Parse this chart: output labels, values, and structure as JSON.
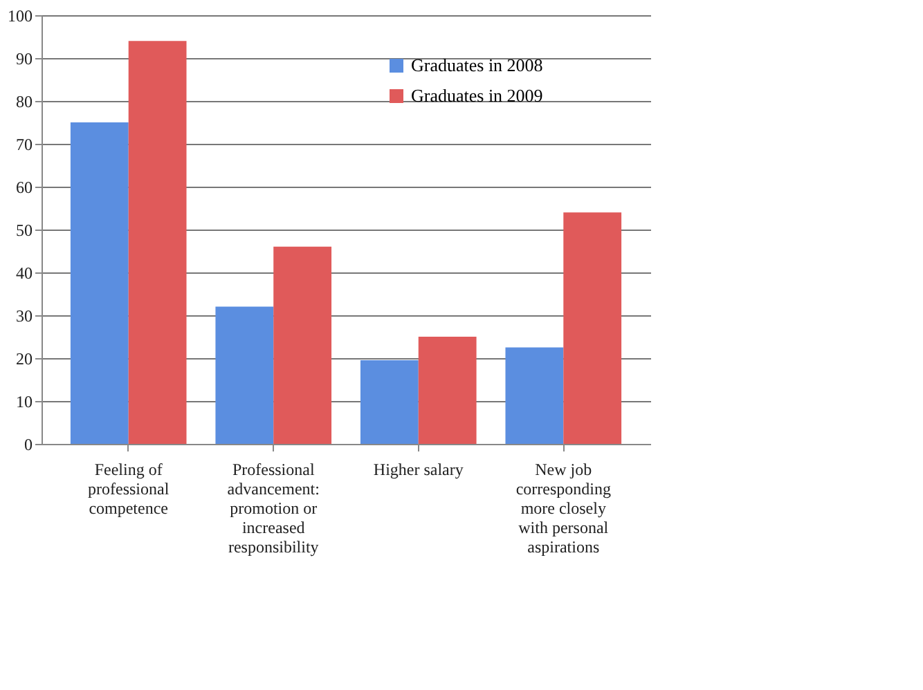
{
  "chart_data": {
    "type": "bar",
    "categories": [
      "Feeling of professional competence",
      "Professional advancement: promotion or increased responsibility",
      "Higher salary",
      "New job corresponding more closely with personal aspirations"
    ],
    "series": [
      {
        "name": "Graduates in 2008",
        "color": "#5b8ee0",
        "values": [
          75,
          32,
          19.5,
          22.5
        ]
      },
      {
        "name": "Graduates in 2009",
        "color": "#e05a5a",
        "values": [
          94,
          46,
          25,
          54
        ]
      }
    ],
    "ylim": [
      0,
      100
    ],
    "yticks": [
      0,
      10,
      20,
      30,
      40,
      50,
      60,
      70,
      80,
      90,
      100
    ],
    "grid": "y",
    "legend": "top right"
  }
}
